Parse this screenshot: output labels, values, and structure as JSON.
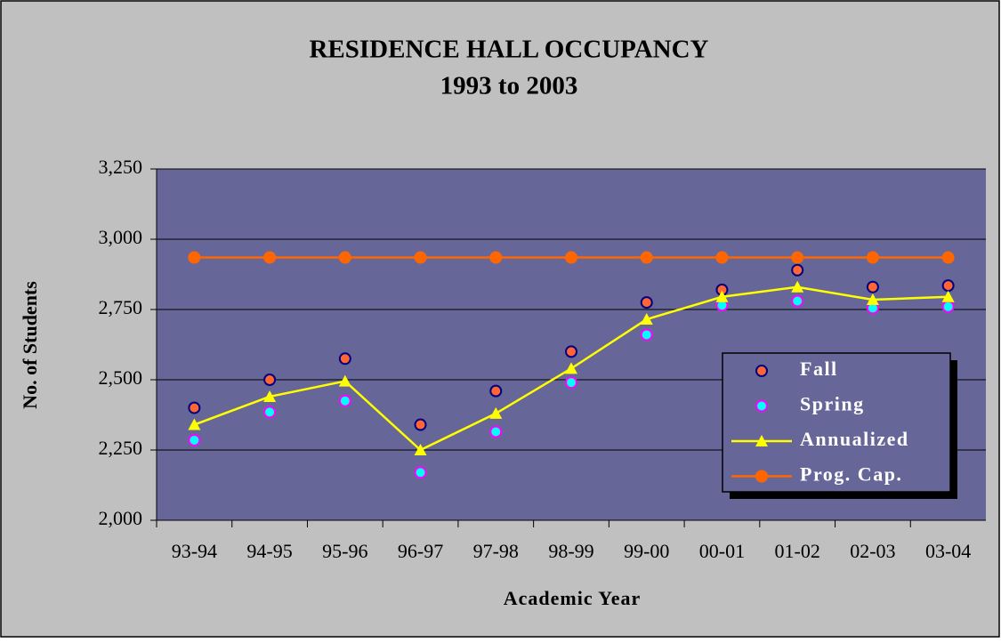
{
  "chart_data": {
    "type": "line",
    "title": "RESIDENCE HALL OCCUPANCY",
    "subtitle": "1993 to 2003",
    "x_label": "Academic Year",
    "y_label": "No. of Students",
    "categories": [
      "93-94",
      "94-95",
      "95-96",
      "96-97",
      "97-98",
      "98-99",
      "99-00",
      "00-01",
      "01-02",
      "02-03",
      "03-04"
    ],
    "series": [
      {
        "name": "Fall",
        "color": "#ff6633",
        "edge": "#000080",
        "marker": "circle",
        "line": false,
        "values": [
          2400,
          2500,
          2575,
          2340,
          2460,
          2600,
          2775,
          2820,
          2890,
          2830,
          2835
        ]
      },
      {
        "name": "Spring",
        "color": "#00ffff",
        "edge": "#ff00ff",
        "marker": "circle",
        "line": false,
        "values": [
          2285,
          2385,
          2425,
          2170,
          2315,
          2490,
          2660,
          2765,
          2780,
          2755,
          2760
        ]
      },
      {
        "name": "Annualized",
        "color": "#ffff00",
        "edge": "#ffff00",
        "marker": "triangle",
        "line": true,
        "values": [
          2340,
          2440,
          2495,
          2250,
          2380,
          2540,
          2715,
          2795,
          2830,
          2785,
          2795
        ]
      },
      {
        "name": "Prog. Cap.",
        "color": "#ff6600",
        "edge": "#ff6600",
        "marker": "circle",
        "line": true,
        "values": [
          2935,
          2935,
          2935,
          2935,
          2935,
          2935,
          2935,
          2935,
          2935,
          2935,
          2935
        ]
      }
    ],
    "ylim": [
      2000,
      3250
    ],
    "yticks": [
      {
        "value": 2000,
        "label": "2,000"
      },
      {
        "value": 2250,
        "label": "2,250"
      },
      {
        "value": 2500,
        "label": "2,500"
      },
      {
        "value": 2750,
        "label": "2,750"
      },
      {
        "value": 3000,
        "label": "3,000"
      },
      {
        "value": 3250,
        "label": "3,250"
      }
    ],
    "grid": true,
    "legend": "lower right",
    "plot_background": "#666699"
  }
}
